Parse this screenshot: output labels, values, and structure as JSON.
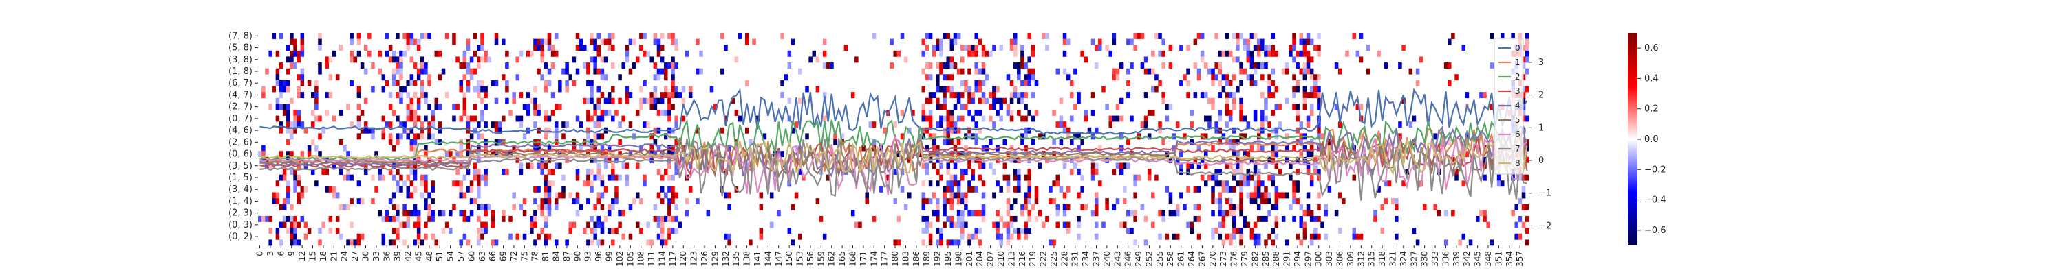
{
  "chart_data": {
    "type": "heatmap",
    "overlay_type": "line",
    "heatmap_ylabels": [
      "(7, 8)",
      "(5, 8)",
      "(3, 8)",
      "(1, 8)",
      "(6, 7)",
      "(4, 7)",
      "(2, 7)",
      "(0, 7)",
      "(4, 6)",
      "(2, 6)",
      "(0, 6)",
      "(3, 5)",
      "(1, 5)",
      "(3, 4)",
      "(1, 4)",
      "(2, 3)",
      "(0, 3)",
      "(0, 2)"
    ],
    "row_count": 36,
    "column_count": 360,
    "x_tick_step": 3,
    "x_tick_last": 357,
    "colorbar": {
      "min": -0.7,
      "max": 0.7,
      "ticks": [
        0.6,
        0.4,
        0.2,
        0.0,
        -0.2,
        -0.4,
        -0.6
      ],
      "tick_labels": [
        "0.6",
        "0.4",
        "0.2",
        "0.0",
        "−0.2",
        "−0.4",
        "−0.6"
      ],
      "colormap": "seismic",
      "low_color": "#00004d",
      "mid_color": "#ffffff",
      "high_color": "#800000"
    },
    "line_axis": {
      "ylim": [
        -2.6,
        3.9
      ],
      "ticks": [
        3,
        2,
        1,
        0,
        -1,
        -2
      ],
      "tick_labels": [
        "3",
        "2",
        "1",
        "0",
        "−1",
        "−2"
      ]
    },
    "series": [
      {
        "name": "0",
        "color": "#4c72b0",
        "segments": [
          [
            0,
            1.0
          ],
          [
            60,
            0.9
          ],
          [
            120,
            1.1
          ],
          [
            140,
            1.0
          ],
          [
            180,
            0.95
          ],
          [
            220,
            0.85
          ],
          [
            250,
            0.95
          ],
          [
            300,
            1.1
          ],
          [
            360,
            1.2
          ]
        ],
        "noise": [
          0.0,
          0.0,
          0.55,
          0.0,
          0.3,
          0.0,
          0.0,
          0.6
        ],
        "regions": [
          [
            0,
            115
          ],
          [
            115,
            180
          ],
          [
            180,
            250
          ],
          [
            250,
            300
          ],
          [
            300,
            360
          ]
        ]
      },
      {
        "name": "1",
        "color": "#dd8452",
        "segments": [
          [
            0,
            -0.05
          ],
          [
            45,
            0.3
          ],
          [
            100,
            0.1
          ],
          [
            180,
            0.1
          ],
          [
            260,
            0.5
          ],
          [
            360,
            0.2
          ]
        ]
      },
      {
        "name": "2",
        "color": "#55a868",
        "segments": [
          [
            0,
            0.05
          ],
          [
            45,
            0.55
          ],
          [
            100,
            0.75
          ],
          [
            180,
            0.7
          ],
          [
            260,
            0.7
          ],
          [
            360,
            0.5
          ]
        ]
      },
      {
        "name": "3",
        "color": "#c44e52",
        "segments": [
          [
            0,
            -0.15
          ],
          [
            60,
            0.3
          ],
          [
            120,
            0.05
          ],
          [
            180,
            0.35
          ],
          [
            260,
            0.3
          ],
          [
            360,
            0.1
          ]
        ]
      },
      {
        "name": "4",
        "color": "#8172b3",
        "segments": [
          [
            0,
            -0.1
          ],
          [
            60,
            0.45
          ],
          [
            120,
            0.0
          ],
          [
            180,
            0.25
          ],
          [
            260,
            0.55
          ],
          [
            360,
            0.0
          ]
        ]
      },
      {
        "name": "5",
        "color": "#937860",
        "segments": [
          [
            0,
            -0.05
          ],
          [
            60,
            0.2
          ],
          [
            120,
            0.0
          ],
          [
            180,
            0.2
          ],
          [
            260,
            0.0
          ],
          [
            360,
            0.0
          ]
        ]
      },
      {
        "name": "6",
        "color": "#da8bc3",
        "segments": [
          [
            0,
            0.0
          ],
          [
            60,
            0.1
          ],
          [
            120,
            -0.3
          ],
          [
            180,
            0.0
          ],
          [
            260,
            -0.1
          ],
          [
            360,
            -0.2
          ]
        ]
      },
      {
        "name": "7",
        "color": "#8c8c8c",
        "segments": [
          [
            0,
            -0.25
          ],
          [
            60,
            0.0
          ],
          [
            120,
            -0.2
          ],
          [
            180,
            0.05
          ],
          [
            260,
            -0.4
          ],
          [
            360,
            -0.3
          ]
        ]
      },
      {
        "name": "8",
        "color": "#ccb974",
        "segments": [
          [
            0,
            0.1
          ],
          [
            60,
            0.15
          ],
          [
            120,
            0.1
          ],
          [
            180,
            0.1
          ],
          [
            260,
            0.1
          ],
          [
            360,
            0.1
          ]
        ]
      }
    ],
    "legend_position": "upper-right",
    "grid": false
  }
}
